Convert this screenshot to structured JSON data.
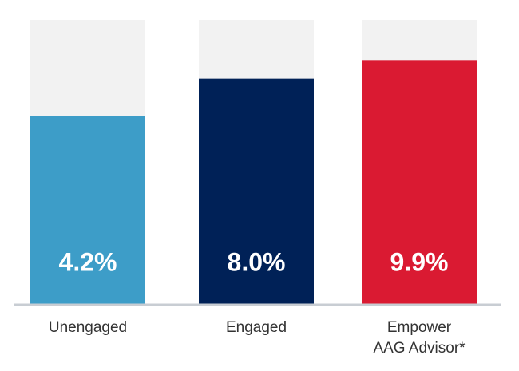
{
  "chart_data": {
    "type": "bar",
    "categories": [
      "Unengaged",
      "Engaged",
      "Empower\nAAG Advisor*"
    ],
    "values": [
      4.2,
      8.0,
      9.9
    ],
    "value_labels": [
      "4.2%",
      "8.0%",
      "9.9%"
    ],
    "colors": [
      "#3d9dc8",
      "#002157",
      "#da1a32"
    ],
    "background_color": "#f2f2f2",
    "ylim": [
      -15,
      14
    ]
  }
}
